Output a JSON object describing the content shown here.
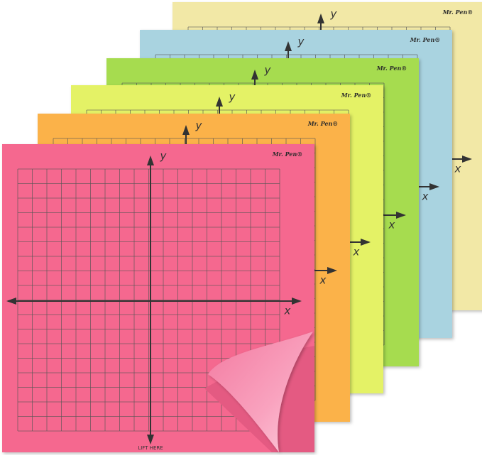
{
  "notes": [
    {
      "brand": "Mr. Pen®",
      "y_axis": "y",
      "x_axis": "x"
    },
    {
      "brand": "Mr. Pen®",
      "y_axis": "y",
      "x_axis": "x"
    },
    {
      "brand": "Mr. Pen®",
      "y_axis": "y",
      "x_axis": "x"
    },
    {
      "brand": "Mr. Pen®",
      "y_axis": "y",
      "x_axis": "x"
    },
    {
      "brand": "Mr. Pen®",
      "y_axis": "y",
      "x_axis": "x"
    },
    {
      "brand": "Mr. Pen®",
      "y_axis": "y",
      "x_axis": "x"
    }
  ],
  "front_note": {
    "lift_label": "LIFT HERE"
  }
}
